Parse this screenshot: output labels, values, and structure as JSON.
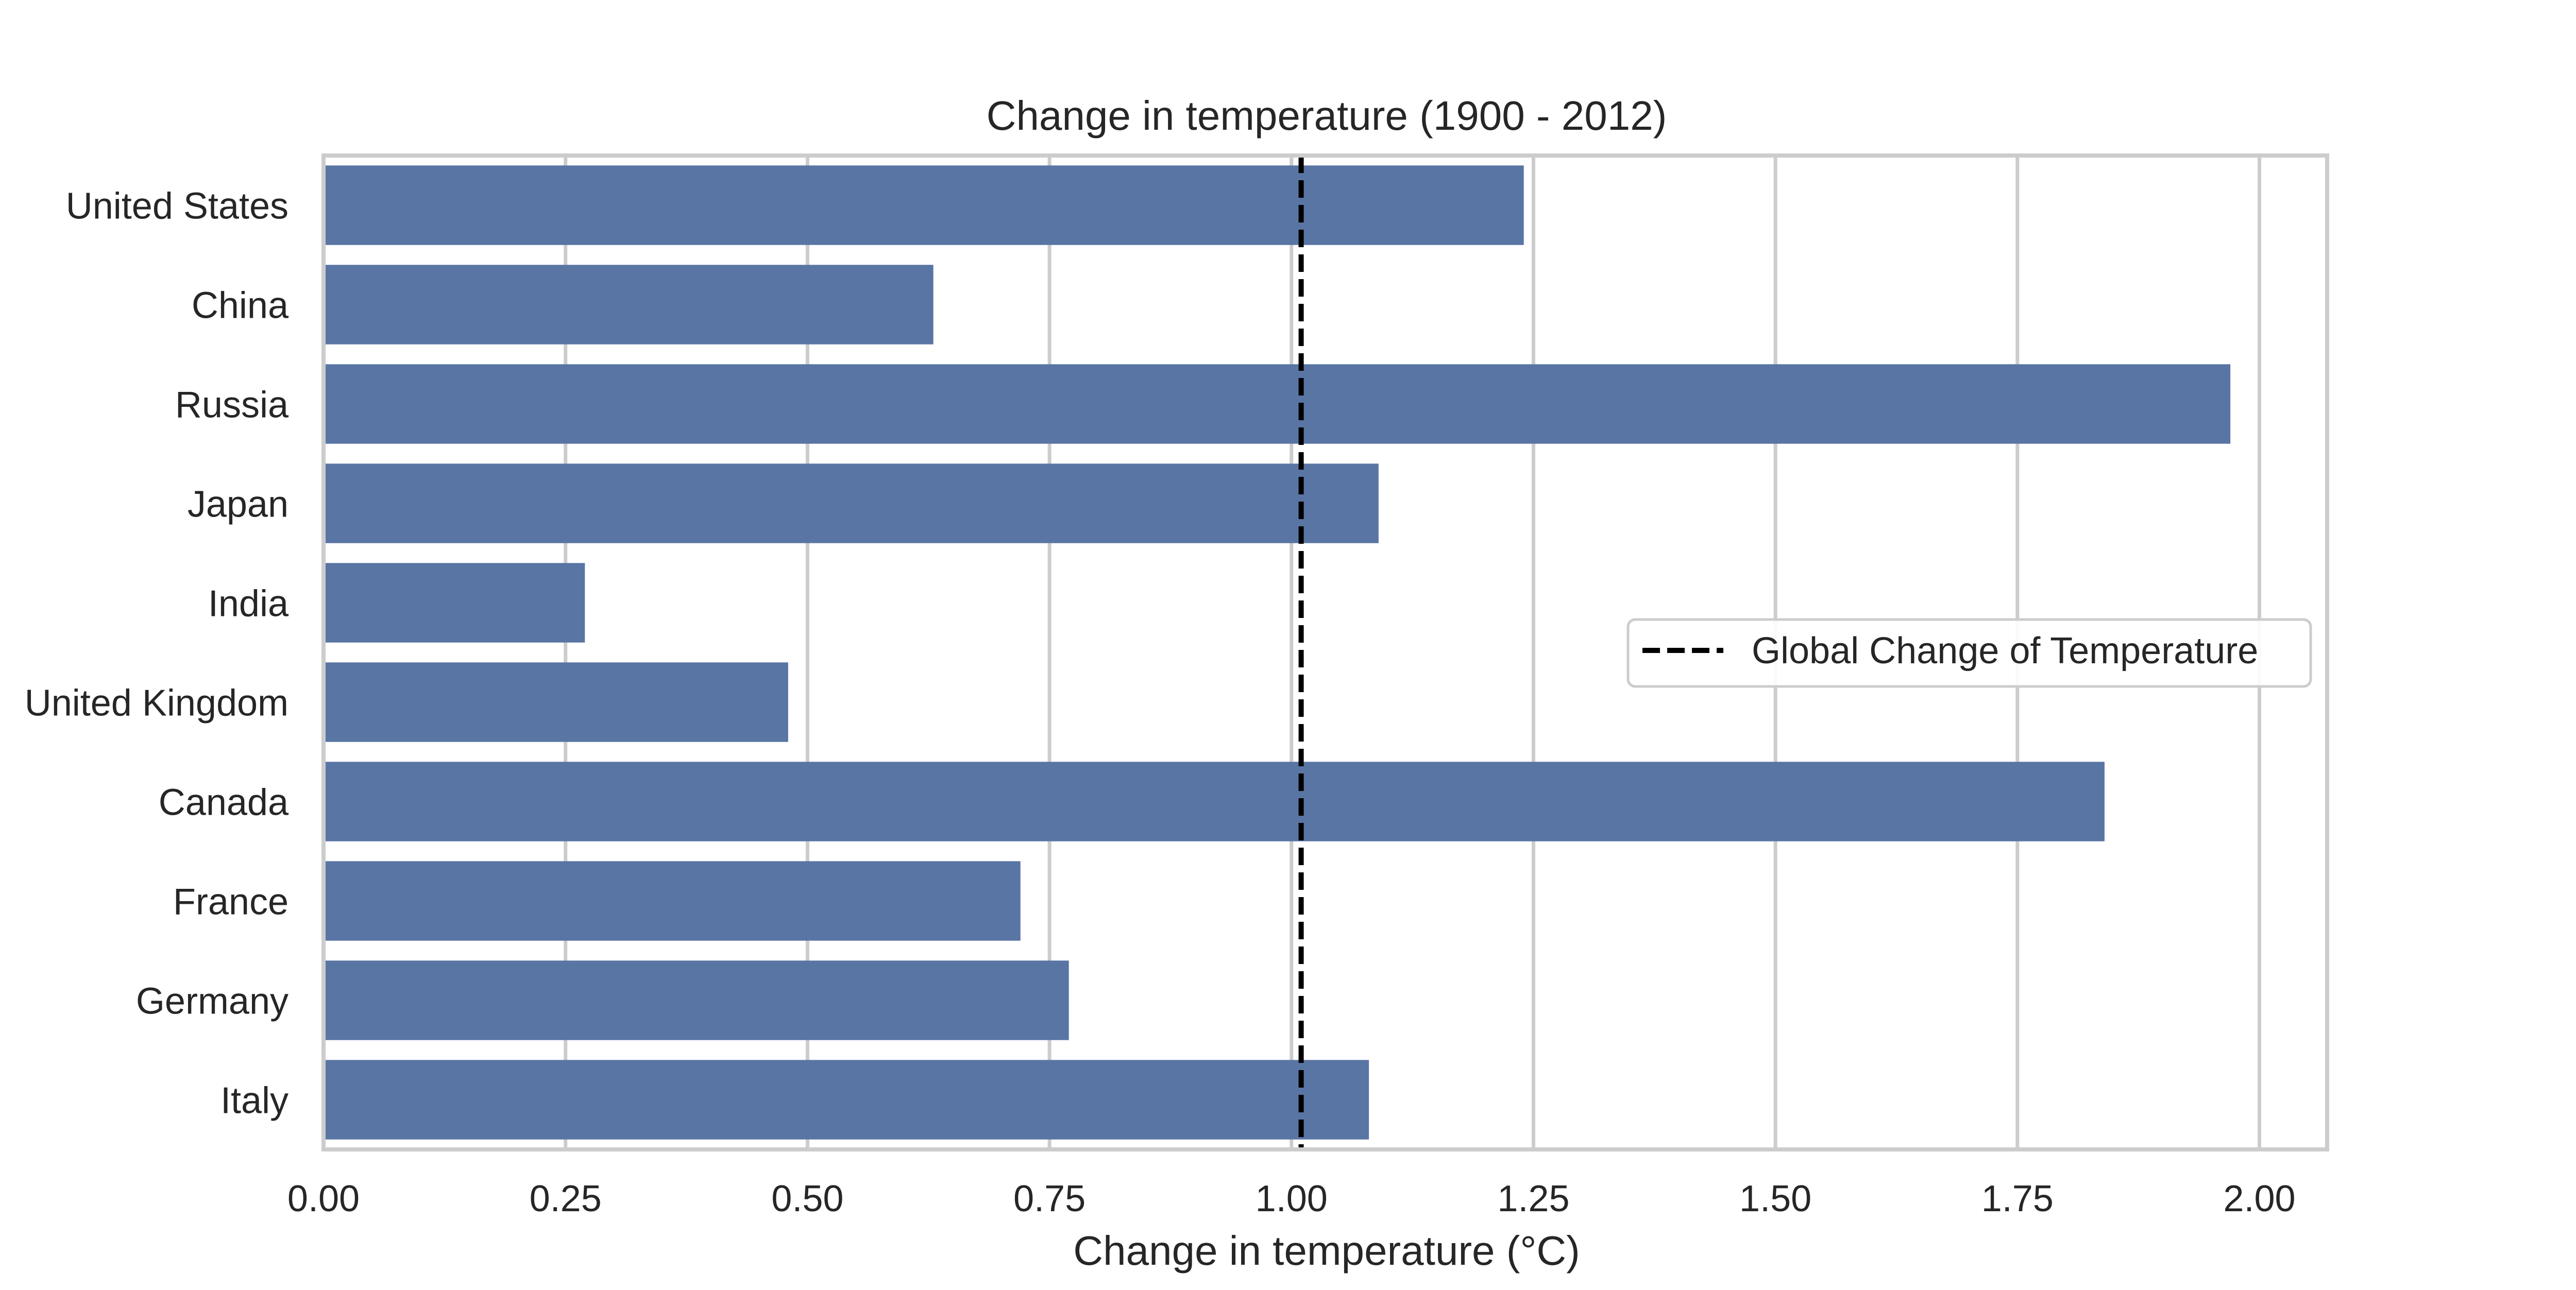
{
  "chart_data": {
    "type": "bar",
    "orientation": "horizontal",
    "title": "Change in temperature (1900 - 2012)",
    "xlabel": "Change in temperature (°C)",
    "ylabel": "",
    "categories": [
      "United States",
      "China",
      "Russia",
      "Japan",
      "India",
      "United Kingdom",
      "Canada",
      "France",
      "Germany",
      "Italy"
    ],
    "values": [
      1.24,
      0.63,
      1.97,
      1.09,
      0.27,
      0.48,
      1.84,
      0.72,
      0.77,
      1.08
    ],
    "xlim": [
      0,
      2.07
    ],
    "xticks": [
      0,
      0.25,
      0.5,
      0.75,
      1.0,
      1.25,
      1.5,
      1.75,
      2.0
    ],
    "xtick_labels": [
      "0.00",
      "0.25",
      "0.50",
      "0.75",
      "1.00",
      "1.25",
      "1.50",
      "1.75",
      "2.00"
    ],
    "reference_line": {
      "value": 1.01,
      "label": "Global Change of Temperature",
      "style": "dashed",
      "color": "#000000"
    },
    "grid": "vertical",
    "legend_position": "right",
    "colors": {
      "bar": "#5975a4",
      "grid": "#cccccc",
      "spine": "#cccccc"
    }
  }
}
